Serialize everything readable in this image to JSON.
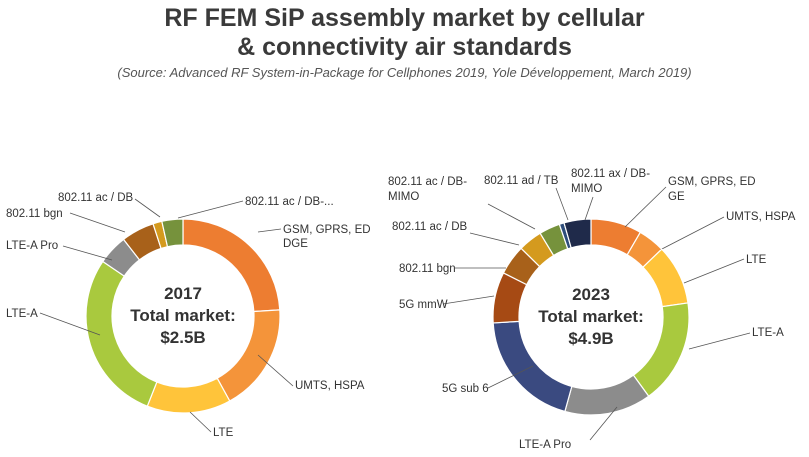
{
  "title_line1": "RF FEM SiP assembly market by cellular",
  "title_line2": "& connectivity air standards",
  "source": "(Source: Advanced RF System-in-Package for Cellphones 2019, Yole Développement, March 2019)",
  "chart_data": [
    {
      "type": "donut",
      "year": "2017",
      "center_label": "Total market:",
      "total": "$2.5B",
      "segments": [
        {
          "name": "GSM, GPRS, EDGE",
          "label_lines": [
            "GSM, GPRS, ED",
            "DGE"
          ],
          "value": 24.0,
          "color": "#ED7D31"
        },
        {
          "name": "UMTS, HSPA",
          "label_lines": [
            "UMTS, HSPA"
          ],
          "value": 18.0,
          "color": "#F4943A"
        },
        {
          "name": "LTE",
          "label_lines": [
            "LTE"
          ],
          "value": 14.0,
          "color": "#FFC43A"
        },
        {
          "name": "LTE-A",
          "label_lines": [
            "LTE-A"
          ],
          "value": 28.5,
          "color": "#A9C93E"
        },
        {
          "name": "LTE-A Pro",
          "label_lines": [
            "LTE-A Pro"
          ],
          "value": 5.0,
          "color": "#8C8C8C"
        },
        {
          "name": "802.11 bgn",
          "label_lines": [
            "802.11 bgn"
          ],
          "value": 5.5,
          "color": "#A8611A"
        },
        {
          "name": "802.11 ac / DB",
          "label_lines": [
            "802.11 ac / DB"
          ],
          "value": 1.5,
          "color": "#D49A1E"
        },
        {
          "name": "802.11 ac / DB-...",
          "label_lines": [
            "802.11 ac / DB-..."
          ],
          "value": 3.5,
          "color": "#76923C"
        }
      ]
    },
    {
      "type": "donut",
      "year": "2023",
      "center_label": "Total market:",
      "total": "$4.9B",
      "segments": [
        {
          "name": "GSM, GPRS, EDGE",
          "label_lines": [
            "GSM, GPRS, ED",
            "GE"
          ],
          "value": 8.5,
          "color": "#ED7D31"
        },
        {
          "name": "UMTS, HSPA",
          "label_lines": [
            "UMTS, HSPA"
          ],
          "value": 4.5,
          "color": "#F4943A"
        },
        {
          "name": "LTE",
          "label_lines": [
            "LTE"
          ],
          "value": 10.0,
          "color": "#FFC43A"
        },
        {
          "name": "LTE-A",
          "label_lines": [
            "LTE-A"
          ],
          "value": 17.5,
          "color": "#A9C93E"
        },
        {
          "name": "LTE-A Pro",
          "label_lines": [
            "LTE-A Pro"
          ],
          "value": 14.5,
          "color": "#8C8C8C"
        },
        {
          "name": "5G sub 6",
          "label_lines": [
            "5G sub 6"
          ],
          "value": 20.0,
          "color": "#3A4A80"
        },
        {
          "name": "5G mmW",
          "label_lines": [
            "5G mmW"
          ],
          "value": 8.5,
          "color": "#A64A14"
        },
        {
          "name": "802.11 bgn",
          "label_lines": [
            "802.11 bgn"
          ],
          "value": 5.0,
          "color": "#A8611A"
        },
        {
          "name": "802.11 ac / DB",
          "label_lines": [
            "802.11 ac / DB"
          ],
          "value": 4.0,
          "color": "#D49A1E"
        },
        {
          "name": "802.11 ac / DB-MIMO",
          "label_lines": [
            "802.11 ac / DB-",
            "MIMO"
          ],
          "value": 3.5,
          "color": "#76923C"
        },
        {
          "name": "802.11 ad / TB",
          "label_lines": [
            "802.11 ad / TB"
          ],
          "value": 0.8,
          "color": "#2E4D7B"
        },
        {
          "name": "802.11 ax / DB-MIMO",
          "label_lines": [
            "802.11 ax / DB-",
            "MIMO"
          ],
          "value": 4.5,
          "color": "#1F2A4A"
        }
      ]
    }
  ]
}
